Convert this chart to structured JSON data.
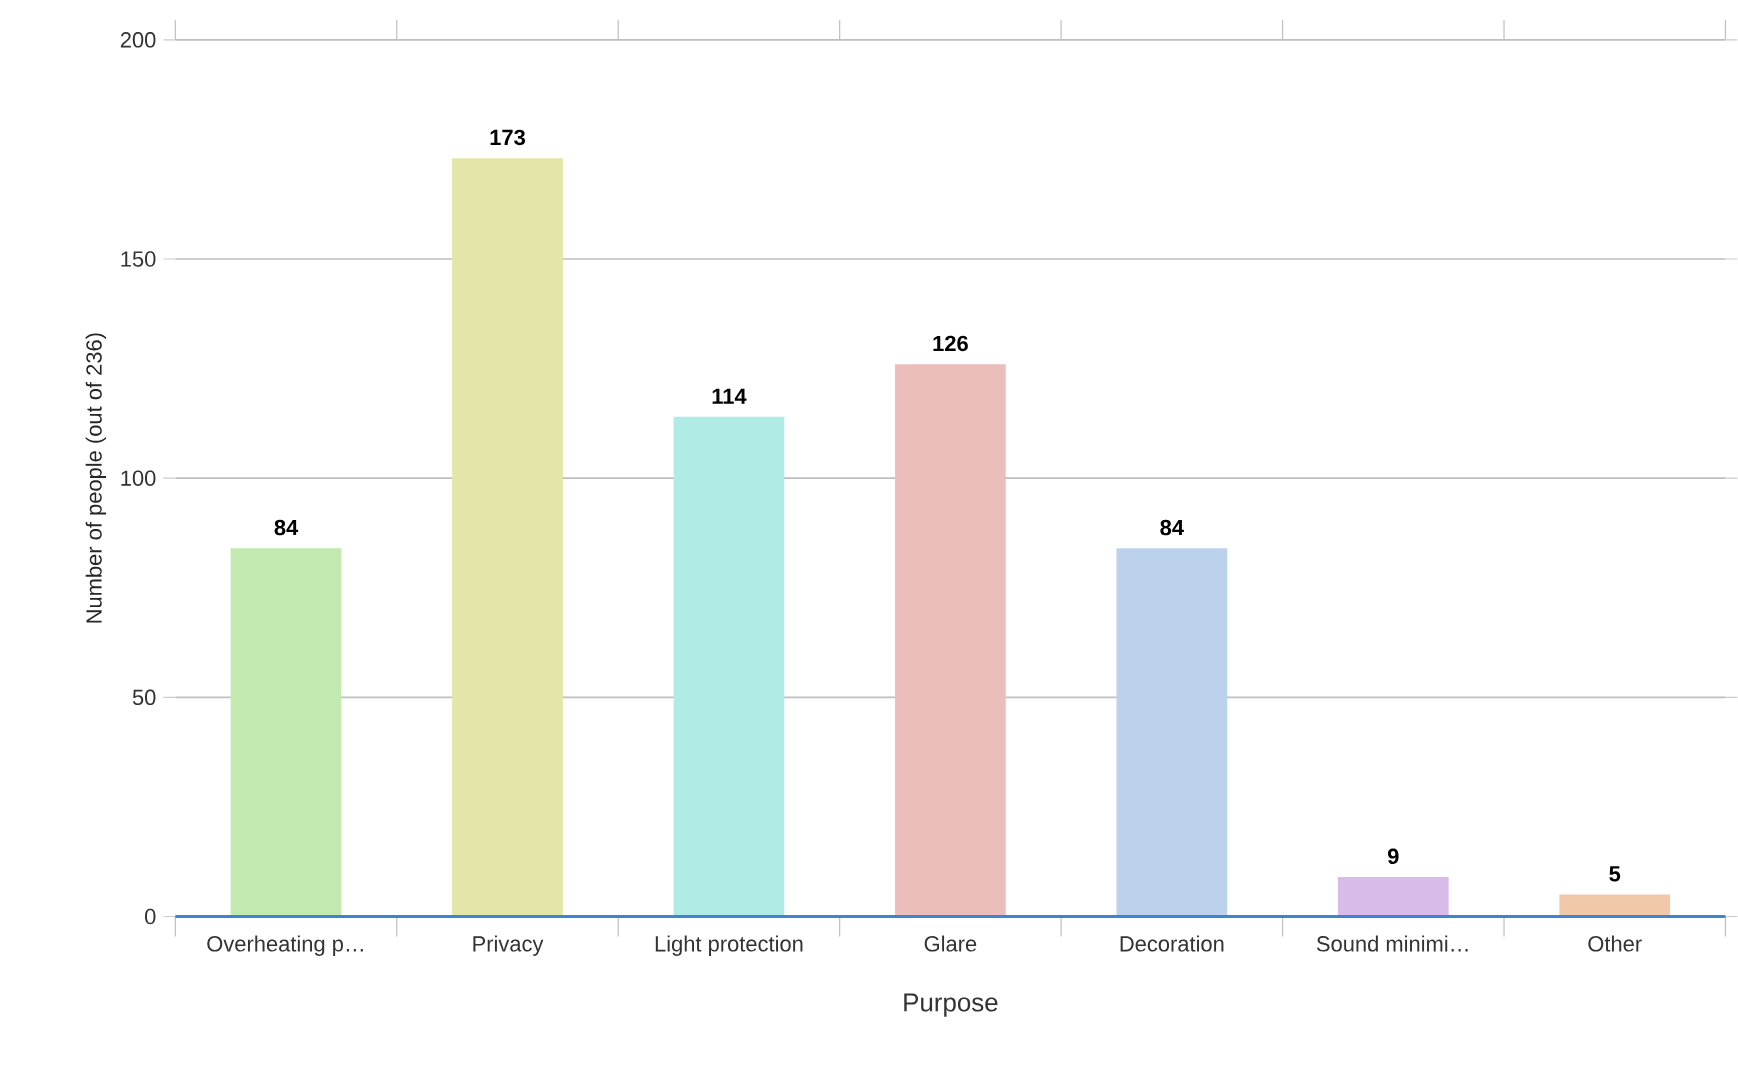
{
  "chart_data": {
    "type": "bar",
    "xlabel": "Purpose",
    "ylabel": "Number of people (out of 236)",
    "categories": [
      "Overheating p…",
      "Privacy",
      "Light protection",
      "Glare",
      "Decoration",
      "Sound minimi…",
      "Other"
    ],
    "values": [
      84,
      173,
      114,
      126,
      84,
      9,
      5
    ],
    "colors": [
      "#c1e9b0",
      "#e3e6a8",
      "#b0ebe6",
      "#ecbebb",
      "#bcd1ec",
      "#d8bbe9",
      "#f1c9a8"
    ],
    "ylim": [
      0,
      200
    ],
    "yticks": [
      0,
      50,
      100,
      150,
      200
    ],
    "grid": "y",
    "data_labels": true
  }
}
